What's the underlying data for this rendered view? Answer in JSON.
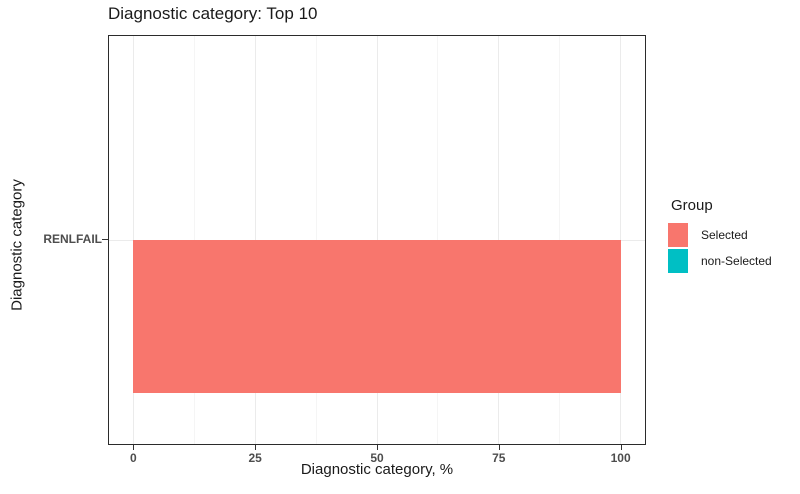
{
  "chart_data": {
    "type": "bar",
    "orientation": "horizontal",
    "title": "Diagnostic category: Top 10",
    "categories": [
      "RENLFAIL"
    ],
    "series": [
      {
        "name": "Selected",
        "color": "#F8766D",
        "values": [
          100
        ]
      },
      {
        "name": "non-Selected",
        "color": "#00BFC4",
        "values": [
          0
        ]
      }
    ],
    "xlabel": "Diagnostic category, %",
    "ylabel": "Diagnostic category",
    "xlim": [
      0,
      100
    ],
    "x_ticks": [
      0,
      25,
      50,
      75,
      100
    ],
    "legend": {
      "title": "Group",
      "position": "right"
    },
    "colors": {
      "grid_major": "#EBEBEB",
      "grid_minor": "#F5F5F5",
      "panel_border": "#2B2B2B",
      "tick_mark": "#333333",
      "tick_text": "#4D4D4D",
      "text": "#1A1A1A"
    }
  }
}
